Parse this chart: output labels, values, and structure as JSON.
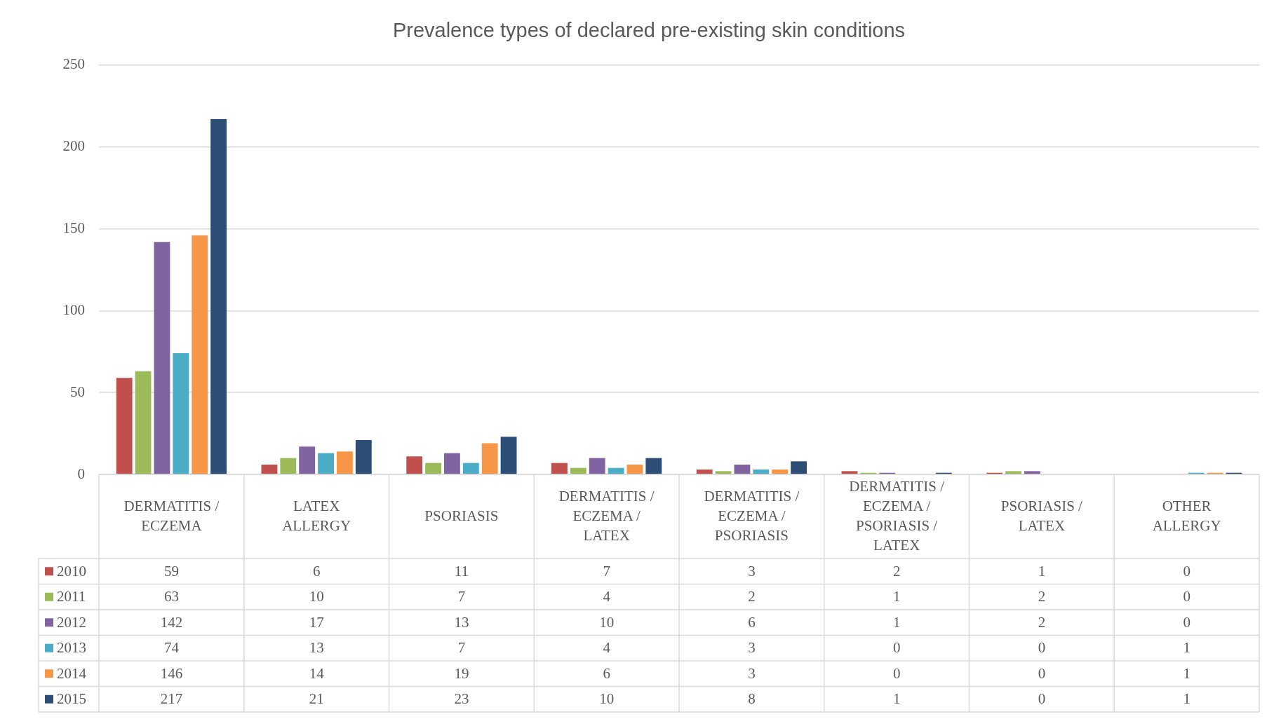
{
  "chart_data": {
    "type": "bar",
    "title": "Prevalence types of declared pre-existing skin conditions",
    "categories": [
      "DERMATITIS / ECZEMA",
      "LATEX ALLERGY",
      "PSORIASIS",
      "DERMATITIS / ECZEMA / LATEX",
      "DERMATITIS / ECZEMA / PSORIASIS",
      "DERMATITIS / ECZEMA / PSORIASIS / LATEX",
      "PSORIASIS / LATEX",
      "OTHER ALLERGY"
    ],
    "series": [
      {
        "name": "2010",
        "color": "#c0504d",
        "values": [
          59,
          6,
          11,
          7,
          3,
          2,
          1,
          0
        ]
      },
      {
        "name": "2011",
        "color": "#9bbb59",
        "values": [
          63,
          10,
          7,
          4,
          2,
          1,
          2,
          0
        ]
      },
      {
        "name": "2012",
        "color": "#8064a2",
        "values": [
          142,
          17,
          13,
          10,
          6,
          1,
          2,
          0
        ]
      },
      {
        "name": "2013",
        "color": "#4bacc6",
        "values": [
          74,
          13,
          7,
          4,
          3,
          0,
          0,
          1
        ]
      },
      {
        "name": "2014",
        "color": "#f79646",
        "values": [
          146,
          14,
          19,
          6,
          3,
          0,
          0,
          1
        ]
      },
      {
        "name": "2015",
        "color": "#2c4d75",
        "values": [
          217,
          21,
          23,
          10,
          8,
          1,
          0,
          1
        ]
      }
    ],
    "ylim": [
      0,
      250
    ],
    "yticks": [
      0,
      50,
      100,
      150,
      200,
      250
    ],
    "grid": "y",
    "data_labels": true,
    "legend": "bottom left"
  }
}
